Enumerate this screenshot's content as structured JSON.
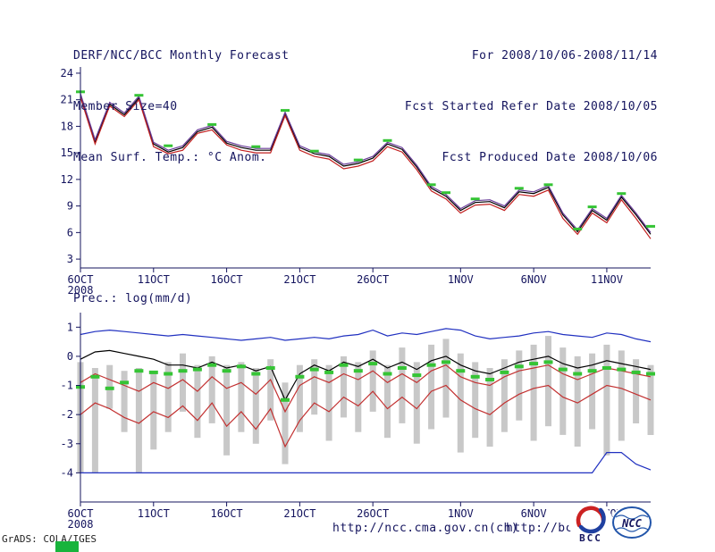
{
  "header": {
    "left_lines": [
      "DERF/NCC/BCC Monthly Forecast",
      "Member Size=40",
      "Mean Surf. Temp.: °C Anom."
    ],
    "right_lines": [
      "For 2008/10/06-2008/11/14",
      "Fcst Started Refer Date 2008/10/05",
      "Fcst Produced Date 2008/10/06"
    ]
  },
  "footer": {
    "credit": "GrADS: COLA/IGES",
    "url_left": "http://ncc.cma.gov.cn(ch)",
    "url_right": "http://bcc.c",
    "bcc_logo_label": "BCC",
    "ncc_logo_label": "NCC"
  },
  "colors": {
    "text": "#14145e",
    "axis": "#14145e",
    "green_marker": "#35c435",
    "green_corner": "#18b43c"
  },
  "chart_data": [
    {
      "type": "line",
      "name": "temperature",
      "title": "Mean Surf. Temp.: °C Anom.",
      "ylim": [
        2,
        24.7
      ],
      "yticks": [
        3,
        6,
        9,
        12,
        15,
        18,
        21,
        24
      ],
      "n": 40,
      "xticks": [
        {
          "day": 0,
          "label": "6OCT",
          "sublabel": "2008"
        },
        {
          "day": 5,
          "label": "11OCT"
        },
        {
          "day": 10,
          "label": "16OCT"
        },
        {
          "day": 15,
          "label": "21OCT"
        },
        {
          "day": 20,
          "label": "26OCT"
        },
        {
          "day": 26,
          "label": "1NOV"
        },
        {
          "day": 31,
          "label": "6NOV"
        },
        {
          "day": 36,
          "label": "11NOV"
        }
      ],
      "series": [
        {
          "name": "ens-member-black",
          "color": "#000000",
          "width": 1.2,
          "values": [
            21.5,
            16.3,
            20.5,
            19.3,
            21.2,
            16.0,
            15.1,
            15.6,
            17.4,
            17.9,
            16.1,
            15.6,
            15.3,
            15.3,
            19.4,
            15.6,
            14.9,
            14.6,
            13.5,
            13.8,
            14.4,
            16.0,
            15.4,
            13.4,
            11.0,
            10.1,
            8.5,
            9.4,
            9.5,
            8.8,
            10.6,
            10.4,
            11.1,
            8.0,
            6.1,
            8.5,
            7.4,
            10.0,
            8.0,
            5.8
          ]
        },
        {
          "name": "ens-member-red",
          "color": "#c22020",
          "width": 1.2,
          "values": [
            21.3,
            16.0,
            20.3,
            19.1,
            21.0,
            15.7,
            14.9,
            15.3,
            17.2,
            17.6,
            15.9,
            15.3,
            15.0,
            15.0,
            19.2,
            15.3,
            14.6,
            14.3,
            13.2,
            13.5,
            14.1,
            15.7,
            15.1,
            13.1,
            10.7,
            9.8,
            8.2,
            9.1,
            9.2,
            8.5,
            10.3,
            10.1,
            10.8,
            7.6,
            5.8,
            8.2,
            7.1,
            9.7,
            7.6,
            5.3
          ]
        },
        {
          "name": "ens-member-purple",
          "color": "#6a3d9a",
          "width": 1.2,
          "values": [
            21.7,
            16.5,
            20.7,
            19.5,
            21.4,
            16.2,
            15.3,
            15.8,
            17.6,
            18.1,
            16.3,
            15.8,
            15.5,
            15.5,
            19.6,
            15.8,
            15.1,
            14.8,
            13.7,
            14.0,
            14.6,
            16.2,
            15.6,
            13.6,
            11.2,
            10.3,
            8.7,
            9.6,
            9.7,
            9.0,
            10.8,
            10.6,
            11.3,
            8.2,
            6.3,
            8.7,
            7.6,
            10.2,
            8.2,
            6.0
          ]
        }
      ],
      "markers": {
        "name": "obs-dash",
        "color": "#35c435",
        "points": [
          [
            0,
            21.9
          ],
          [
            4,
            21.5
          ],
          [
            6,
            15.8
          ],
          [
            9,
            18.2
          ],
          [
            12,
            15.7
          ],
          [
            14,
            19.8
          ],
          [
            16,
            15.2
          ],
          [
            19,
            14.2
          ],
          [
            21,
            16.4
          ],
          [
            24,
            11.4
          ],
          [
            25,
            10.5
          ],
          [
            27,
            9.8
          ],
          [
            30,
            11.0
          ],
          [
            32,
            11.4
          ],
          [
            34,
            6.4
          ],
          [
            35,
            8.9
          ],
          [
            37,
            10.4
          ],
          [
            39,
            6.7
          ]
        ]
      }
    },
    {
      "type": "range-bar-line",
      "name": "precipitation",
      "title": "Prec.: log(mm/d)",
      "ylim": [
        -5,
        1.5
      ],
      "yticks": [
        -4,
        -3,
        -2,
        -1,
        0,
        1
      ],
      "n": 40,
      "bar_color": "#c8c8c8",
      "xticks": [
        {
          "day": 0,
          "label": "6OCT",
          "sublabel": "2008"
        },
        {
          "day": 5,
          "label": "11OCT"
        },
        {
          "day": 10,
          "label": "16OCT"
        },
        {
          "day": 15,
          "label": "21OCT"
        },
        {
          "day": 20,
          "label": "26OCT"
        },
        {
          "day": 26,
          "label": "1NOV"
        },
        {
          "day": 31,
          "label": "6NOV"
        },
        {
          "day": 36,
          "label": "11NOV"
        }
      ],
      "bars": [
        [
          -4.0,
          -0.2
        ],
        [
          -4.0,
          -0.4
        ],
        [
          -1.8,
          -0.3
        ],
        [
          -2.6,
          -0.5
        ],
        [
          -4.0,
          -0.4
        ],
        [
          -3.2,
          -0.6
        ],
        [
          -2.6,
          -0.2
        ],
        [
          -1.9,
          0.1
        ],
        [
          -2.8,
          -0.3
        ],
        [
          -2.3,
          0.0
        ],
        [
          -3.4,
          -0.3
        ],
        [
          -2.6,
          -0.2
        ],
        [
          -3.0,
          -0.4
        ],
        [
          -2.2,
          -0.1
        ],
        [
          -3.7,
          -0.9
        ],
        [
          -2.6,
          -0.3
        ],
        [
          -2.0,
          -0.1
        ],
        [
          -2.9,
          -0.3
        ],
        [
          -2.1,
          0.0
        ],
        [
          -2.6,
          -0.2
        ],
        [
          -1.9,
          0.2
        ],
        [
          -2.8,
          -0.3
        ],
        [
          -2.3,
          0.3
        ],
        [
          -3.0,
          -0.2
        ],
        [
          -2.5,
          0.4
        ],
        [
          -2.1,
          0.6
        ],
        [
          -3.3,
          0.1
        ],
        [
          -2.8,
          -0.2
        ],
        [
          -3.1,
          -0.4
        ],
        [
          -2.6,
          -0.1
        ],
        [
          -2.2,
          0.2
        ],
        [
          -2.9,
          0.4
        ],
        [
          -2.4,
          0.7
        ],
        [
          -2.7,
          0.3
        ],
        [
          -3.1,
          0.0
        ],
        [
          -2.5,
          0.1
        ],
        [
          -3.4,
          0.4
        ],
        [
          -2.9,
          0.2
        ],
        [
          -2.3,
          -0.1
        ],
        [
          -2.7,
          -0.3
        ]
      ],
      "series": [
        {
          "name": "max-blue",
          "color": "#2030c0",
          "width": 1.2,
          "values": [
            0.75,
            0.85,
            0.9,
            0.85,
            0.8,
            0.75,
            0.7,
            0.75,
            0.7,
            0.65,
            0.6,
            0.55,
            0.6,
            0.65,
            0.55,
            0.6,
            0.65,
            0.6,
            0.7,
            0.75,
            0.9,
            0.7,
            0.8,
            0.75,
            0.85,
            0.95,
            0.9,
            0.7,
            0.6,
            0.65,
            0.7,
            0.8,
            0.85,
            0.75,
            0.7,
            0.65,
            0.8,
            0.75,
            0.6,
            0.5
          ]
        },
        {
          "name": "mean-black",
          "color": "#000000",
          "width": 1.2,
          "values": [
            -0.1,
            0.15,
            0.2,
            0.1,
            0.0,
            -0.1,
            -0.3,
            -0.3,
            -0.4,
            -0.2,
            -0.4,
            -0.3,
            -0.5,
            -0.35,
            -1.5,
            -0.6,
            -0.3,
            -0.5,
            -0.2,
            -0.35,
            -0.1,
            -0.4,
            -0.2,
            -0.45,
            -0.15,
            0.0,
            -0.3,
            -0.5,
            -0.6,
            -0.4,
            -0.2,
            -0.1,
            0.0,
            -0.25,
            -0.4,
            -0.3,
            -0.15,
            -0.25,
            -0.35,
            -0.45
          ]
        },
        {
          "name": "upper-red",
          "color": "#c23030",
          "width": 1.2,
          "values": [
            -0.9,
            -0.6,
            -0.8,
            -1.0,
            -1.2,
            -0.9,
            -1.1,
            -0.8,
            -1.2,
            -0.7,
            -1.1,
            -0.9,
            -1.3,
            -0.8,
            -1.9,
            -1.0,
            -0.7,
            -0.9,
            -0.6,
            -0.8,
            -0.5,
            -0.9,
            -0.6,
            -0.9,
            -0.5,
            -0.3,
            -0.7,
            -0.9,
            -1.0,
            -0.7,
            -0.5,
            -0.4,
            -0.3,
            -0.6,
            -0.8,
            -0.6,
            -0.4,
            -0.5,
            -0.6,
            -0.7
          ]
        },
        {
          "name": "lower-red",
          "color": "#c23030",
          "width": 1.2,
          "values": [
            -2.0,
            -1.6,
            -1.8,
            -2.1,
            -2.3,
            -1.9,
            -2.1,
            -1.7,
            -2.2,
            -1.6,
            -2.4,
            -1.9,
            -2.5,
            -1.8,
            -3.1,
            -2.2,
            -1.6,
            -1.9,
            -1.4,
            -1.7,
            -1.2,
            -1.8,
            -1.4,
            -1.8,
            -1.2,
            -1.0,
            -1.5,
            -1.8,
            -2.0,
            -1.6,
            -1.3,
            -1.1,
            -1.0,
            -1.4,
            -1.6,
            -1.3,
            -1.0,
            -1.1,
            -1.3,
            -1.5
          ]
        },
        {
          "name": "floor-blue",
          "color": "#2030c0",
          "width": 1.2,
          "values": [
            -4,
            -4,
            -4,
            -4,
            -4,
            -4,
            -4,
            -4,
            -4,
            -4,
            -4,
            -4,
            -4,
            -4,
            -4,
            -4,
            -4,
            -4,
            -4,
            -4,
            -4,
            -4,
            -4,
            -4,
            -4,
            -4,
            -4,
            -4,
            -4,
            -4,
            -4,
            -4,
            -4,
            -4,
            -4,
            -4,
            -3.3,
            -3.3,
            -3.7,
            -3.9
          ]
        }
      ],
      "markers": {
        "name": "obs-dash",
        "color": "#35c435",
        "points": [
          [
            0,
            -1.05
          ],
          [
            1,
            -0.7
          ],
          [
            2,
            -1.1
          ],
          [
            3,
            -0.9
          ],
          [
            4,
            -0.5
          ],
          [
            5,
            -0.55
          ],
          [
            6,
            -0.6
          ],
          [
            7,
            -0.5
          ],
          [
            8,
            -0.45
          ],
          [
            9,
            -0.3
          ],
          [
            10,
            -0.5
          ],
          [
            11,
            -0.35
          ],
          [
            12,
            -0.6
          ],
          [
            13,
            -0.4
          ],
          [
            14,
            -1.5
          ],
          [
            15,
            -0.7
          ],
          [
            16,
            -0.45
          ],
          [
            17,
            -0.55
          ],
          [
            18,
            -0.3
          ],
          [
            19,
            -0.5
          ],
          [
            20,
            -0.25
          ],
          [
            21,
            -0.6
          ],
          [
            22,
            -0.4
          ],
          [
            23,
            -0.65
          ],
          [
            24,
            -0.3
          ],
          [
            25,
            -0.2
          ],
          [
            26,
            -0.5
          ],
          [
            27,
            -0.7
          ],
          [
            28,
            -0.8
          ],
          [
            29,
            -0.55
          ],
          [
            30,
            -0.35
          ],
          [
            31,
            -0.25
          ],
          [
            32,
            -0.2
          ],
          [
            33,
            -0.45
          ],
          [
            34,
            -0.6
          ],
          [
            35,
            -0.5
          ],
          [
            36,
            -0.4
          ],
          [
            37,
            -0.45
          ],
          [
            38,
            -0.55
          ],
          [
            39,
            -0.6
          ]
        ]
      }
    }
  ]
}
